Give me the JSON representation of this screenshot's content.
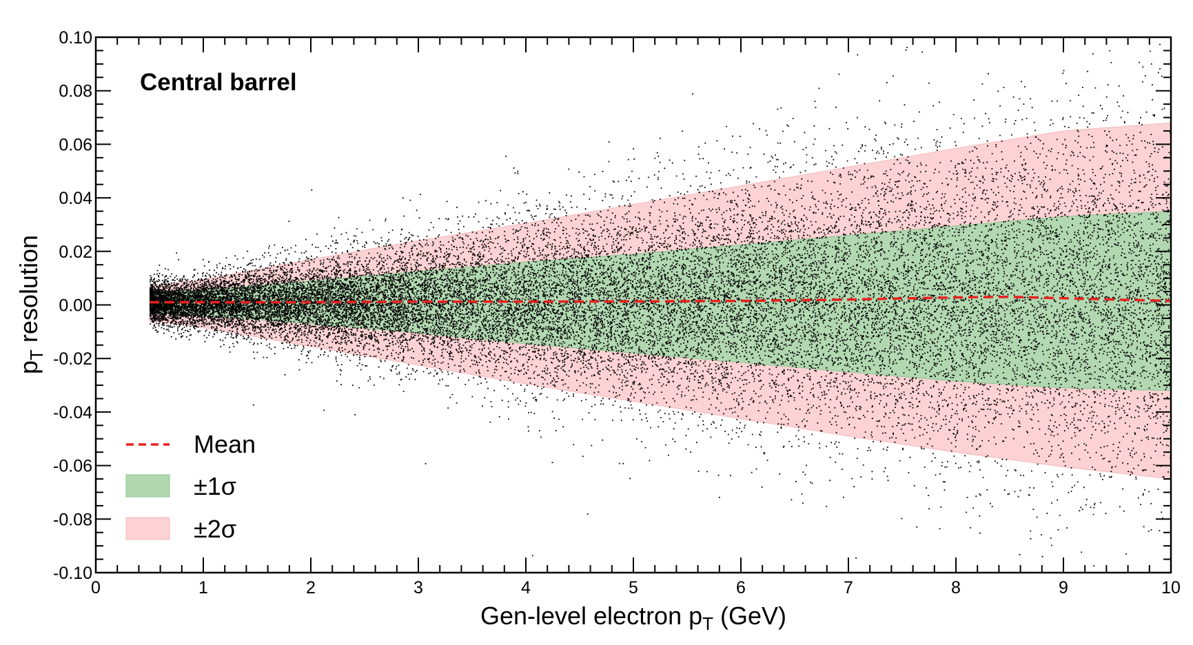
{
  "chart_data": {
    "type": "scatter",
    "title": "",
    "xlabel": "Gen-level electron p",
    "xlabel_sub": "T",
    "xlabel_suffix": " (GeV)",
    "ylabel": "p",
    "ylabel_sub": "T",
    "ylabel_suffix": " resolution",
    "xlim": [
      0,
      10
    ],
    "ylim": [
      -0.1,
      0.1
    ],
    "x_ticks": [
      0,
      1,
      2,
      3,
      4,
      5,
      6,
      7,
      8,
      9,
      10
    ],
    "x_tick_labels": [
      "0",
      "1",
      "2",
      "3",
      "4",
      "5",
      "6",
      "7",
      "8",
      "9",
      "10"
    ],
    "y_ticks": [
      -0.1,
      -0.08,
      -0.06,
      -0.04,
      -0.02,
      0.0,
      0.02,
      0.04,
      0.06,
      0.08,
      0.1
    ],
    "y_tick_labels": [
      "-0.10",
      "-0.08",
      "-0.06",
      "-0.04",
      "-0.02",
      "0.00",
      "0.02",
      "0.04",
      "0.06",
      "0.08",
      "0.10"
    ],
    "grid": false,
    "annotation": "Central barrel",
    "legend_placement": "lower-left",
    "legend": [
      {
        "label": "Mean",
        "kind": "dashed-line",
        "color": "#e8211e"
      },
      {
        "label": "±1σ",
        "kind": "band",
        "color": "#b2d8b1"
      },
      {
        "label": "±2σ",
        "kind": "band",
        "color": "#fcd2d4"
      }
    ],
    "scatter_color": "#000000",
    "scatter_x_range": [
      0.5,
      10
    ],
    "series": [
      {
        "name": "Mean",
        "style": "dashed",
        "color": "#e8211e",
        "x": [
          0.5,
          1,
          2,
          3,
          4,
          5,
          6,
          7,
          8,
          8.5,
          9,
          10
        ],
        "y": [
          0.001,
          0.001,
          0.001,
          0.0012,
          0.0012,
          0.0013,
          0.0015,
          0.002,
          0.0028,
          0.003,
          0.0025,
          0.0015
        ]
      },
      {
        "name": "±1σ",
        "style": "band",
        "color": "#b2d8b1",
        "x": [
          0.5,
          1,
          2,
          3,
          4,
          5,
          6,
          7,
          8,
          9,
          10
        ],
        "lower": [
          -0.003,
          -0.004,
          -0.007,
          -0.0105,
          -0.0145,
          -0.018,
          -0.0215,
          -0.025,
          -0.0285,
          -0.031,
          -0.032
        ],
        "upper": [
          0.0045,
          0.0055,
          0.009,
          0.0125,
          0.016,
          0.019,
          0.0225,
          0.026,
          0.0295,
          0.033,
          0.035
        ]
      },
      {
        "name": "±2σ",
        "style": "band",
        "color": "#fcd2d4",
        "x": [
          0.5,
          1,
          2,
          3,
          4,
          5,
          6,
          7,
          8,
          9,
          10
        ],
        "lower": [
          -0.006,
          -0.0085,
          -0.0155,
          -0.0225,
          -0.0295,
          -0.036,
          -0.0425,
          -0.049,
          -0.055,
          -0.0605,
          -0.065
        ],
        "upper": [
          0.007,
          0.0095,
          0.017,
          0.024,
          0.0305,
          0.0375,
          0.0445,
          0.0515,
          0.0585,
          0.065,
          0.068
        ]
      }
    ]
  }
}
